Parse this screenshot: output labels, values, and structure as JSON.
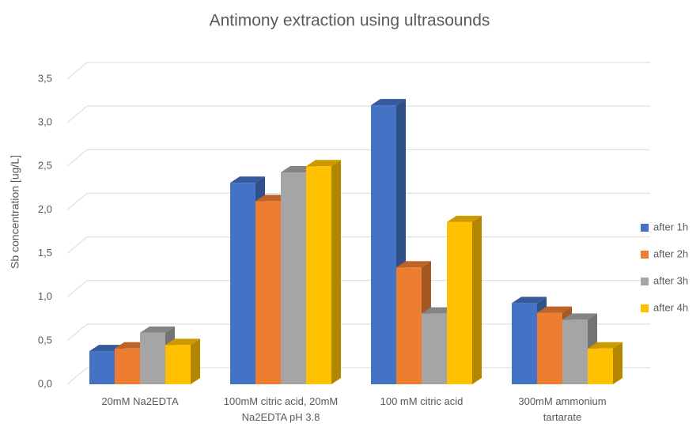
{
  "chart_data": {
    "type": "bar3d",
    "title": "Antimony extraction using ultrasounds",
    "y_label": "Sb concentration [ug/L]",
    "categories": [
      "20mM Na2EDTA",
      "100mM citric acid, 20mM Na2EDTA pH 3.8",
      "100 mM citric acid",
      "300mM ammonium tartarate"
    ],
    "series": [
      {
        "name": "after 1h",
        "color": "#4472c4",
        "values": [
          0.38,
          2.31,
          3.2,
          0.93
        ]
      },
      {
        "name": "after 2h",
        "color": "#ed7d31",
        "values": [
          0.41,
          2.1,
          1.34,
          0.82
        ]
      },
      {
        "name": "after 3h",
        "color": "#a5a5a5",
        "values": [
          0.59,
          2.43,
          0.81,
          0.74
        ]
      },
      {
        "name": "after 4h",
        "color": "#ffc000",
        "values": [
          0.45,
          2.5,
          1.86,
          0.41
        ]
      }
    ],
    "ylim": [
      0,
      3.5
    ],
    "yticks": [
      {
        "value": 0,
        "label": "0,0"
      },
      {
        "value": 0.5,
        "label": "0,5"
      },
      {
        "value": 1,
        "label": "1,0"
      },
      {
        "value": 1.5,
        "label": "1,5"
      },
      {
        "value": 2,
        "label": "2,0"
      },
      {
        "value": 2.5,
        "label": "2,5"
      },
      {
        "value": 3,
        "label": "3,0"
      },
      {
        "value": 3.5,
        "label": "3,5"
      }
    ],
    "grid": true,
    "legend": "right"
  }
}
